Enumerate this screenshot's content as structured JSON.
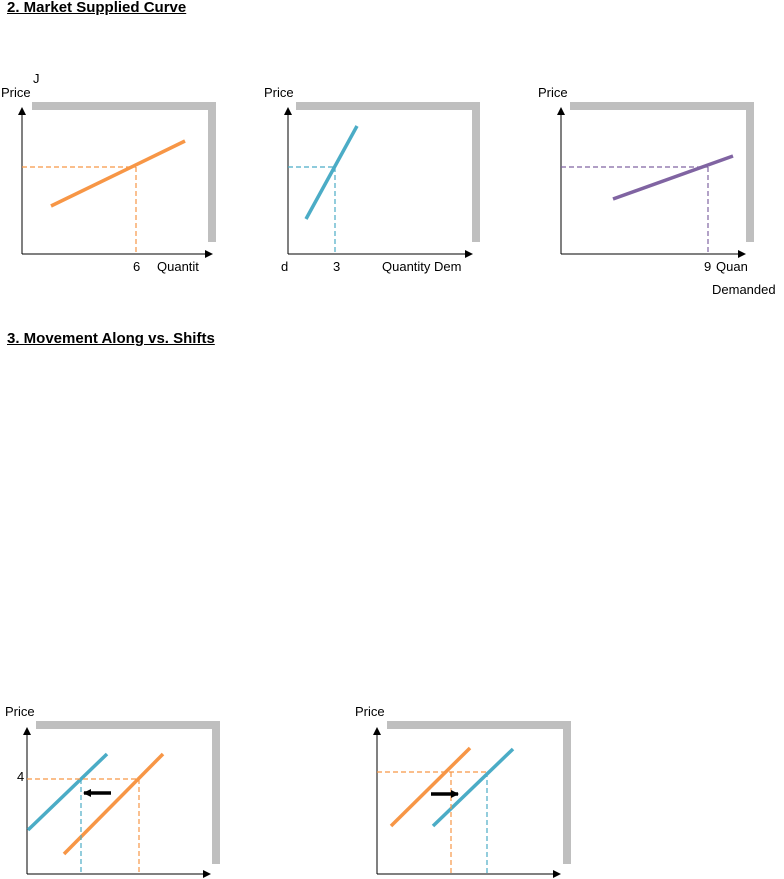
{
  "headings": {
    "section2": "2. Market Supplied Curve",
    "section3": "3. Movement Along vs. Shifts"
  },
  "colors": {
    "orange": "#F79646",
    "blue": "#4BACC6",
    "purple": "#8064A2",
    "frame": "#BFBFBF",
    "axis": "#000000"
  },
  "graphs": {
    "g1": {
      "ylabel": "Price",
      "stray_mark": "J",
      "x_value": "6",
      "xlabel": "Quantit"
    },
    "g2": {
      "ylabel": "Price",
      "left_mark": "d",
      "x_value": "3",
      "xlabel": "Quantity Dem"
    },
    "g3": {
      "ylabel": "Price",
      "x_value": "9",
      "xlabel": "Quan",
      "xlabel_continued": "Demanded"
    },
    "g4": {
      "ylabel": "Price",
      "y_value": "4"
    },
    "g5": {
      "ylabel": "Price"
    }
  }
}
